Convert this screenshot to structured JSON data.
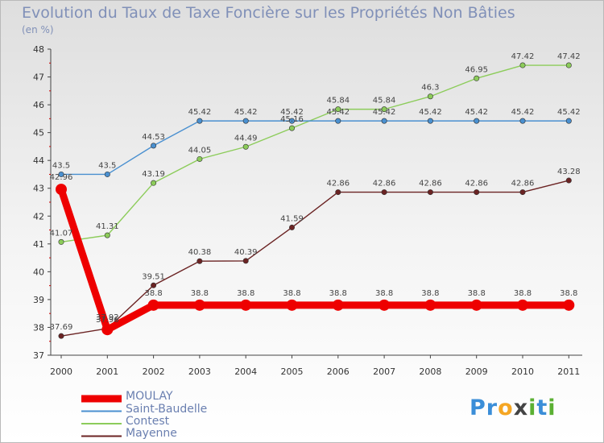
{
  "header": {
    "title": "Evolution du Taux de Taxe Foncière sur les Propriétés Non Bâties",
    "unit": "(en %)"
  },
  "chart_data": {
    "type": "line",
    "title": "Evolution du Taux de Taxe Foncière sur les Propriétés Non Bâties",
    "ylabel": "(en %)",
    "xlabel": "",
    "x": [
      "2000",
      "2001",
      "2002",
      "2003",
      "2004",
      "2005",
      "2006",
      "2007",
      "2008",
      "2009",
      "2010",
      "2011"
    ],
    "ylim": [
      37,
      48
    ],
    "yticks": [
      37,
      38,
      39,
      40,
      41,
      42,
      43,
      44,
      45,
      46,
      47,
      48
    ],
    "grid": false,
    "legend": "bottom-left",
    "series": [
      {
        "name": "Mayenne",
        "color": "#6b2323",
        "values": [
          37.69,
          37.96,
          39.51,
          40.38,
          40.39,
          41.59,
          42.86,
          42.86,
          42.86,
          42.86,
          42.86,
          43.28
        ],
        "labels": [
          "37.69",
          "37.96",
          "39.51",
          "40.38",
          "40.39",
          "41.59",
          "42.86",
          "42.86",
          "42.86",
          "42.86",
          "42.86",
          "43.28"
        ]
      },
      {
        "name": "Contest",
        "color": "#8ccc5a",
        "values": [
          41.07,
          41.31,
          43.19,
          44.05,
          44.49,
          45.16,
          45.84,
          45.84,
          46.3,
          46.95,
          47.42,
          47.42
        ],
        "labels": [
          "41.07",
          "41.31",
          "43.19",
          "44.05",
          "44.49",
          "45.16",
          "45.84",
          "45.84",
          "46.3",
          "46.95",
          "47.42",
          "47.42"
        ]
      },
      {
        "name": "Saint-Baudelle",
        "color": "#4a90d0",
        "values": [
          43.5,
          43.5,
          44.53,
          45.42,
          45.42,
          45.42,
          45.42,
          45.42,
          45.42,
          45.42,
          45.42,
          45.42
        ],
        "labels": [
          "43.5",
          "43.5",
          "44.53",
          "45.42",
          "45.42",
          "45.42",
          "45.42",
          "45.42",
          "45.42",
          "45.42",
          "45.42",
          "45.42"
        ]
      },
      {
        "name": "MOULAY",
        "color": "#ee0000",
        "values": [
          42.96,
          37.92,
          38.8,
          38.8,
          38.8,
          38.8,
          38.8,
          38.8,
          38.8,
          38.8,
          38.8,
          38.8
        ],
        "labels": [
          "42.96",
          "37.92",
          "38.8",
          "38.8",
          "38.8",
          "38.8",
          "38.8",
          "38.8",
          "38.8",
          "38.8",
          "38.8",
          "38.8"
        ]
      }
    ]
  },
  "legend": {
    "items": [
      {
        "label": "MOULAY",
        "color": "#ee0000"
      },
      {
        "label": "Saint-Baudelle",
        "color": "#4a90d0"
      },
      {
        "label": "Contest",
        "color": "#8ccc5a"
      },
      {
        "label": "Mayenne",
        "color": "#6b2323"
      }
    ]
  },
  "logo": {
    "letters": [
      "P",
      "r",
      "o",
      "x",
      "i",
      "t",
      "i"
    ],
    "colors": [
      "#3b8ed8",
      "#3b8ed8",
      "#f5a623",
      "#444444",
      "#5bb033",
      "#3b8ed8",
      "#5bb033"
    ]
  }
}
